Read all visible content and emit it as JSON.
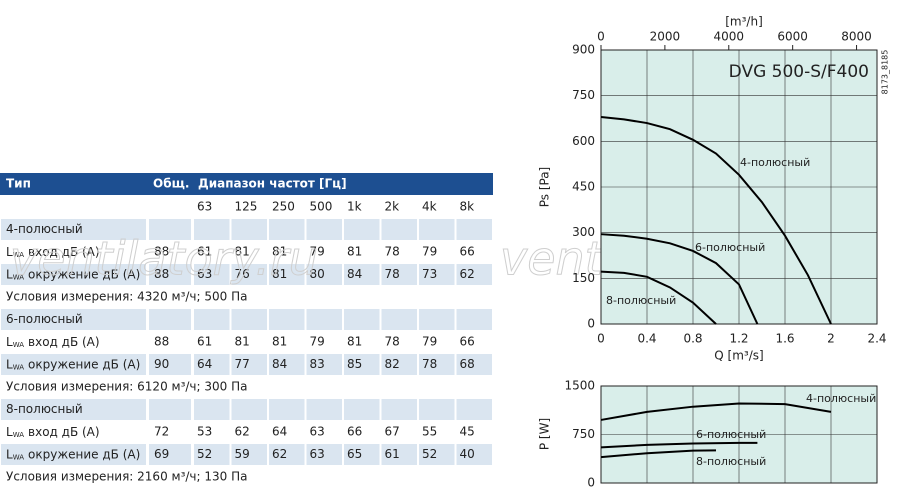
{
  "table": {
    "headers": [
      "Тип",
      "Общ.",
      "Диапазон частот [Гц]"
    ],
    "frequencies": [
      "63",
      "125",
      "250",
      "500",
      "1k",
      "2k",
      "4k",
      "8k"
    ],
    "groups": [
      {
        "name": "4-полюсный",
        "rows": [
          {
            "symbol": "L",
            "subscript": "WA",
            "label": "вход дБ (А)",
            "total": "88",
            "values": [
              "61",
              "81",
              "81",
              "79",
              "81",
              "78",
              "79",
              "66"
            ]
          },
          {
            "symbol": "L",
            "subscript": "WA",
            "label": "окружение дБ (А)",
            "total": "88",
            "values": [
              "63",
              "76",
              "81",
              "80",
              "84",
              "78",
              "73",
              "62"
            ]
          }
        ],
        "conditions": "Условия измерения: 4320 м³/ч; 500 Па"
      },
      {
        "name": "6-полюсный",
        "rows": [
          {
            "symbol": "L",
            "subscript": "WA",
            "label": "вход дБ (А)",
            "total": "88",
            "values": [
              "61",
              "81",
              "81",
              "79",
              "81",
              "78",
              "79",
              "66"
            ]
          },
          {
            "symbol": "L",
            "subscript": "WA",
            "label": "окружение дБ (А)",
            "total": "90",
            "values": [
              "64",
              "77",
              "84",
              "83",
              "85",
              "82",
              "78",
              "68"
            ]
          }
        ],
        "conditions": "Условия измерения: 6120 м³/ч; 300 Па"
      },
      {
        "name": "8-полюсный",
        "rows": [
          {
            "symbol": "L",
            "subscript": "WA",
            "label": "вход дБ (А)",
            "total": "72",
            "values": [
              "53",
              "62",
              "64",
              "63",
              "66",
              "67",
              "55",
              "45"
            ]
          },
          {
            "symbol": "L",
            "subscript": "WA",
            "label": "окружение дБ (А)",
            "total": "69",
            "values": [
              "52",
              "59",
              "62",
              "63",
              "65",
              "61",
              "52",
              "40"
            ]
          }
        ],
        "conditions": "Условия измерения: 2160 м³/ч; 130 Па"
      }
    ]
  },
  "watermark": "ventilatory.ru",
  "code": "8173_8185",
  "chart_data": [
    {
      "type": "line",
      "title": "DVG 500-S/F400",
      "x_label": "Q [m³/s]",
      "y_label": "Ps [Pa]",
      "x2_label": "[m³/h]",
      "xlim": [
        0,
        2.4
      ],
      "xticks": [
        0,
        0.4,
        0.8,
        1.2,
        1.6,
        2,
        2.4
      ],
      "ylim": [
        0,
        900
      ],
      "yticks": [
        0,
        150,
        300,
        450,
        600,
        750,
        900
      ],
      "x2lim": [
        0,
        8640
      ],
      "x2ticks": [
        0,
        2000,
        4000,
        6000,
        8000
      ],
      "grid": true,
      "background": "#d9eeea",
      "series": [
        {
          "name": "4-полюсный",
          "color": "#000000",
          "x": [
            0,
            0.2,
            0.4,
            0.6,
            0.8,
            1.0,
            1.2,
            1.4,
            1.6,
            1.8,
            2.0
          ],
          "values": [
            680,
            672,
            660,
            640,
            605,
            560,
            490,
            400,
            290,
            160,
            0
          ]
        },
        {
          "name": "6-полюсный",
          "color": "#000000",
          "x": [
            0,
            0.2,
            0.4,
            0.6,
            0.8,
            1.0,
            1.2,
            1.36
          ],
          "values": [
            295,
            290,
            280,
            265,
            240,
            200,
            130,
            0
          ]
        },
        {
          "name": "8-полюсный",
          "color": "#000000",
          "x": [
            0,
            0.2,
            0.4,
            0.6,
            0.8,
            1.0
          ],
          "values": [
            172,
            168,
            155,
            120,
            70,
            0
          ]
        }
      ]
    },
    {
      "type": "line",
      "y_label": "P [W]",
      "xlim": [
        0,
        2.4
      ],
      "xticks": [
        0,
        0.4,
        0.8,
        1.2,
        1.6,
        2,
        2.4
      ],
      "ylim": [
        0,
        1500
      ],
      "yticks": [
        0,
        750,
        1500
      ],
      "grid": true,
      "background": "#d9eeea",
      "series": [
        {
          "name": "4-полюсный",
          "color": "#000000",
          "x": [
            0,
            0.4,
            0.8,
            1.2,
            1.6,
            2.0
          ],
          "values": [
            975,
            1100,
            1180,
            1230,
            1220,
            1100
          ]
        },
        {
          "name": "6-полюсный",
          "color": "#000000",
          "x": [
            0,
            0.4,
            0.8,
            1.2,
            1.36
          ],
          "values": [
            550,
            590,
            610,
            620,
            620
          ]
        },
        {
          "name": "8-полюсный",
          "color": "#000000",
          "x": [
            0,
            0.4,
            0.8,
            1.0
          ],
          "values": [
            400,
            460,
            500,
            505
          ]
        }
      ]
    }
  ]
}
